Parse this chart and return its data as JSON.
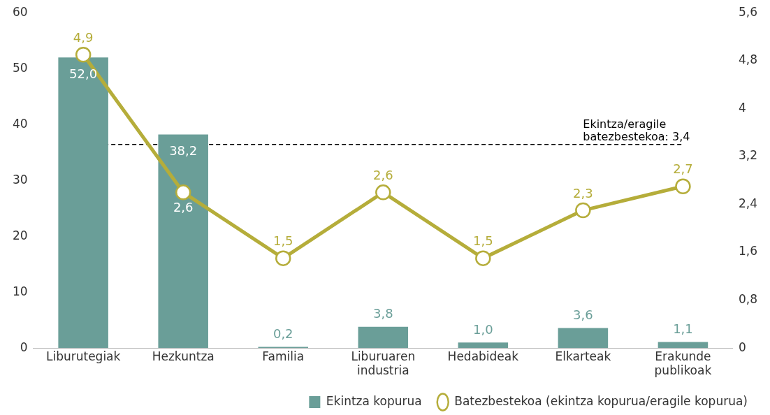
{
  "chart_data": {
    "type": "bar",
    "categories": [
      "Liburutegiak",
      "Hezkuntza",
      "Familia",
      "Liburuaren industria",
      "Hedabideak",
      "Elkarteak",
      "Erakunde publikoak"
    ],
    "series": [
      {
        "name": "Ekintza kopurua",
        "color": "#6a9e98",
        "values": [
          52.0,
          38.2,
          0.2,
          3.8,
          1.0,
          3.6,
          1.1
        ],
        "value_labels": [
          "52,0",
          "38,2",
          "0,2",
          "3,8",
          "1,0",
          "3,6",
          "1,1"
        ]
      },
      {
        "name": "Batezbestekoa (ekintza kopurua/eragile kopurua)",
        "type": "line",
        "axis": "y2",
        "color": "#b5ad3a",
        "values": [
          4.9,
          2.6,
          1.5,
          2.6,
          1.5,
          2.3,
          2.7
        ],
        "value_labels": [
          "4,9",
          "2,6",
          "1,5",
          "2,6",
          "1,5",
          "2,3",
          "2,7"
        ]
      }
    ],
    "ylim": [
      0,
      60
    ],
    "yticks": [
      0,
      10,
      20,
      30,
      40,
      50,
      60
    ],
    "y2lim": [
      0,
      5.6
    ],
    "y2ticks": [
      0,
      {
        "value": 0.8,
        "label": "0,8"
      },
      {
        "value": 1.6,
        "label": "1,6"
      },
      {
        "value": 2.4,
        "label": "2,4"
      },
      {
        "value": 3.2,
        "label": "3,2"
      },
      4,
      {
        "value": 4.8,
        "label": "4,8"
      },
      {
        "value": 5.6,
        "label": "5,6"
      }
    ],
    "ref_lines": [
      {
        "axis": "y2",
        "value": 3.4,
        "label": "Ekintza/eragile batezbestekoa: 3,4",
        "color": "#000000",
        "line_style": "dashed"
      }
    ],
    "marker": "circle",
    "line_style": "solid",
    "grid": false,
    "legend": "bottom"
  }
}
